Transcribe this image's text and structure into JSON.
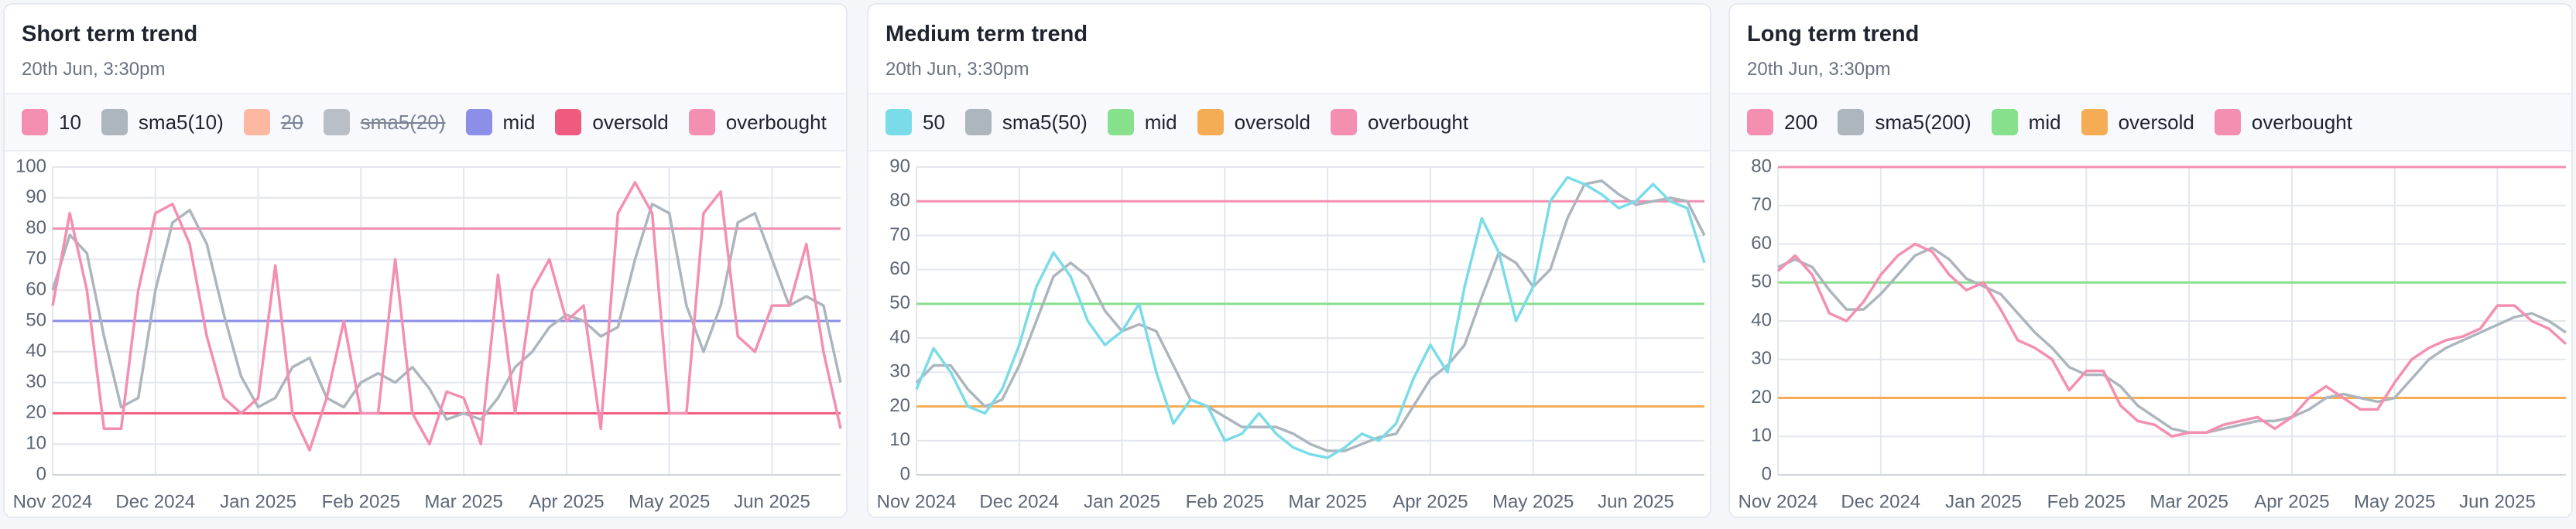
{
  "chart_data": [
    {
      "type": "line",
      "title": "Short term trend",
      "subtitle": "20th Jun, 3:30pm",
      "categories": [
        "Nov 2024",
        null,
        null,
        null,
        null,
        null,
        "Dec 2024",
        null,
        null,
        null,
        null,
        null,
        "Jan 2025",
        null,
        null,
        null,
        null,
        null,
        "Feb 2025",
        null,
        null,
        null,
        null,
        null,
        "Mar 2025",
        null,
        null,
        null,
        null,
        null,
        "Apr 2025",
        null,
        null,
        null,
        null,
        null,
        "May 2025",
        null,
        null,
        null,
        null,
        null,
        "Jun 2025",
        null,
        null,
        null,
        null
      ],
      "series": [
        {
          "name": "10",
          "color": "#f48fb1",
          "values": [
            55,
            85,
            60,
            15,
            15,
            60,
            85,
            88,
            75,
            45,
            25,
            20,
            25,
            68,
            20,
            8,
            25,
            50,
            20,
            20,
            70,
            20,
            10,
            27,
            25,
            10,
            65,
            20,
            60,
            70,
            50,
            55,
            15,
            85,
            95,
            85,
            20,
            20,
            85,
            92,
            45,
            40,
            55,
            55,
            75,
            40,
            15
          ]
        },
        {
          "name": "sma5(10)",
          "color": "#adb5bd",
          "values": [
            60,
            78,
            72,
            45,
            22,
            25,
            60,
            82,
            86,
            75,
            52,
            32,
            22,
            25,
            35,
            38,
            25,
            22,
            30,
            33,
            30,
            35,
            28,
            18,
            20,
            18,
            25,
            35,
            40,
            48,
            52,
            50,
            45,
            48,
            70,
            88,
            85,
            55,
            40,
            55,
            82,
            85,
            70,
            55,
            58,
            55,
            30
          ]
        },
        {
          "name": "20",
          "color": "#ffab91",
          "hidden": true
        },
        {
          "name": "sma5(20)",
          "color": "#adb5bd",
          "hidden": true
        }
      ],
      "reference_lines": [
        {
          "name": "mid",
          "color": "#8b8fe8",
          "value": 50
        },
        {
          "name": "oversold",
          "color": "#ef5a7f",
          "value": 20
        },
        {
          "name": "overbought",
          "color": "#f48fb1",
          "value": 80
        }
      ],
      "ylim": [
        0,
        100
      ],
      "yticks": [
        0,
        10,
        20,
        30,
        40,
        50,
        60,
        70,
        80,
        90,
        100
      ],
      "grid": true
    },
    {
      "type": "line",
      "title": "Medium term trend",
      "subtitle": "20th Jun, 3:30pm",
      "categories": [
        "Nov 2024",
        null,
        null,
        null,
        null,
        null,
        "Dec 2024",
        null,
        null,
        null,
        null,
        null,
        "Jan 2025",
        null,
        null,
        null,
        null,
        null,
        "Feb 2025",
        null,
        null,
        null,
        null,
        null,
        "Mar 2025",
        null,
        null,
        null,
        null,
        null,
        "Apr 2025",
        null,
        null,
        null,
        null,
        null,
        "May 2025",
        null,
        null,
        null,
        null,
        null,
        "Jun 2025",
        null,
        null,
        null,
        null
      ],
      "series": [
        {
          "name": "50",
          "color": "#7adce8",
          "values": [
            25,
            37,
            30,
            20,
            18,
            25,
            38,
            55,
            65,
            58,
            45,
            38,
            42,
            50,
            30,
            15,
            22,
            20,
            10,
            12,
            18,
            12,
            8,
            6,
            5,
            8,
            12,
            10,
            15,
            28,
            38,
            30,
            55,
            75,
            65,
            45,
            55,
            80,
            87,
            85,
            82,
            78,
            80,
            85,
            80,
            78,
            62
          ]
        },
        {
          "name": "sma5(50)",
          "color": "#adb5bd",
          "values": [
            27,
            32,
            32,
            25,
            20,
            22,
            32,
            45,
            58,
            62,
            58,
            48,
            42,
            44,
            42,
            32,
            22,
            20,
            17,
            14,
            14,
            14,
            12,
            9,
            7,
            7,
            9,
            11,
            12,
            20,
            28,
            32,
            38,
            52,
            65,
            62,
            55,
            60,
            75,
            85,
            86,
            82,
            79,
            80,
            81,
            80,
            70
          ]
        }
      ],
      "reference_lines": [
        {
          "name": "mid",
          "color": "#86e08c",
          "value": 50
        },
        {
          "name": "oversold",
          "color": "#f5ad55",
          "value": 20
        },
        {
          "name": "overbought",
          "color": "#f48fb1",
          "value": 80
        }
      ],
      "ylim": [
        0,
        90
      ],
      "yticks": [
        0,
        10,
        20,
        30,
        40,
        50,
        60,
        70,
        80,
        90
      ],
      "grid": true
    },
    {
      "type": "line",
      "title": "Long term trend",
      "subtitle": "20th Jun, 3:30pm",
      "categories": [
        "Nov 2024",
        null,
        null,
        null,
        null,
        null,
        "Dec 2024",
        null,
        null,
        null,
        null,
        null,
        "Jan 2025",
        null,
        null,
        null,
        null,
        null,
        "Feb 2025",
        null,
        null,
        null,
        null,
        null,
        "Mar 2025",
        null,
        null,
        null,
        null,
        null,
        "Apr 2025",
        null,
        null,
        null,
        null,
        null,
        "May 2025",
        null,
        null,
        null,
        null,
        null,
        "Jun 2025",
        null,
        null,
        null,
        null
      ],
      "series": [
        {
          "name": "200",
          "color": "#f48fb1",
          "values": [
            53,
            57,
            52,
            42,
            40,
            45,
            52,
            57,
            60,
            58,
            52,
            48,
            50,
            43,
            35,
            33,
            30,
            22,
            27,
            27,
            18,
            14,
            13,
            10,
            11,
            11,
            13,
            14,
            15,
            12,
            15,
            20,
            23,
            20,
            17,
            17,
            24,
            30,
            33,
            35,
            36,
            38,
            44,
            44,
            40,
            38,
            34
          ]
        },
        {
          "name": "sma5(200)",
          "color": "#adb5bd",
          "values": [
            54,
            56,
            54,
            48,
            43,
            43,
            47,
            52,
            57,
            59,
            56,
            51,
            49,
            47,
            42,
            37,
            33,
            28,
            26,
            26,
            23,
            18,
            15,
            12,
            11,
            11,
            12,
            13,
            14,
            14,
            15,
            17,
            20,
            21,
            20,
            19,
            20,
            25,
            30,
            33,
            35,
            37,
            39,
            41,
            42,
            40,
            37
          ]
        }
      ],
      "reference_lines": [
        {
          "name": "mid",
          "color": "#86e08c",
          "value": 50
        },
        {
          "name": "oversold",
          "color": "#f5ad55",
          "value": 20
        },
        {
          "name": "overbought",
          "color": "#f48fb1",
          "value": 80
        }
      ],
      "ylim": [
        0,
        80
      ],
      "yticks": [
        0,
        10,
        20,
        30,
        40,
        50,
        60,
        70,
        80
      ],
      "grid": true
    }
  ]
}
